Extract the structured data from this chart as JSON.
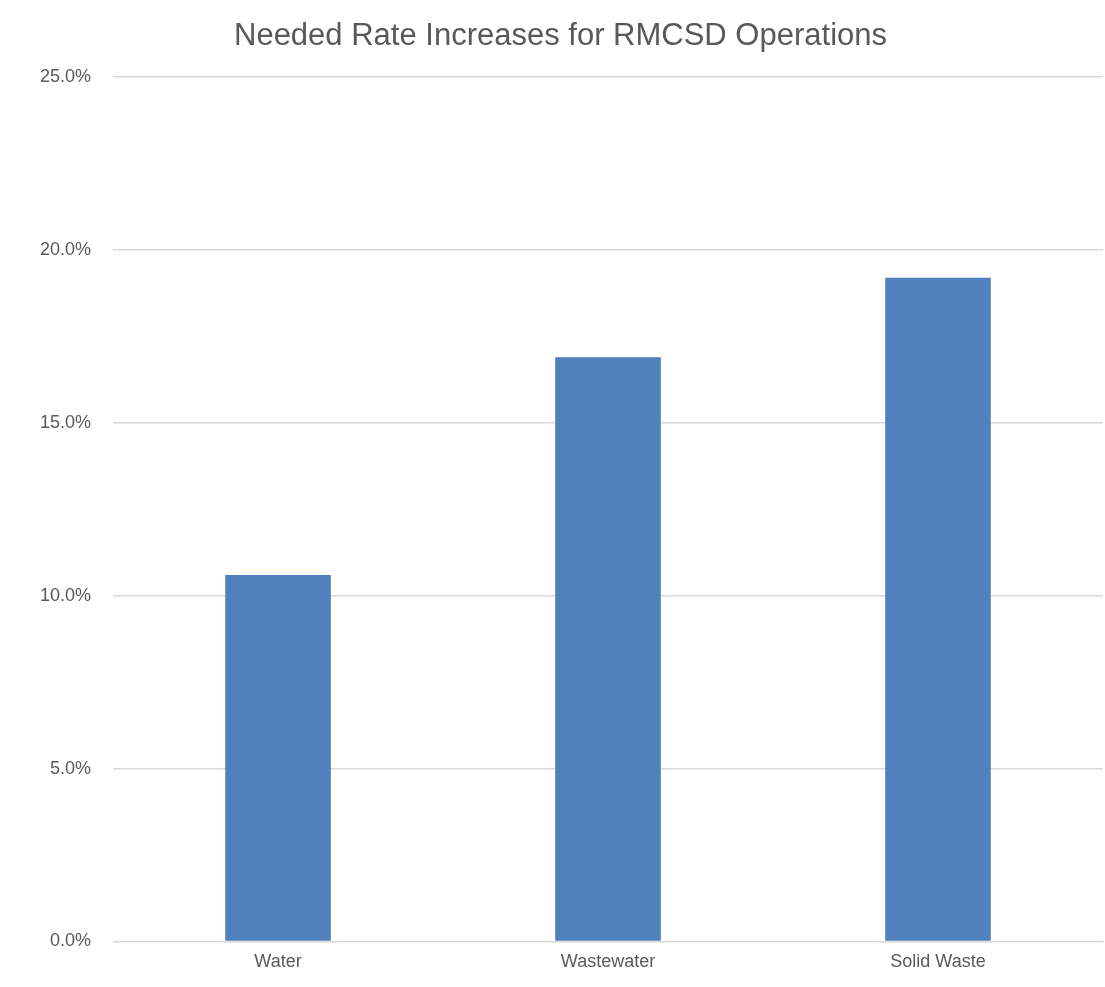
{
  "chart_data": {
    "type": "bar",
    "title": "Needed Rate Increases for RMCSD Operations",
    "categories": [
      "Water",
      "Wastewater",
      "Solid Waste"
    ],
    "values": [
      10.6,
      16.9,
      19.2
    ],
    "color": "#4f81bd",
    "ylim": [
      0,
      25
    ],
    "yticks": [
      {
        "value": 0,
        "label": "0.0%"
      },
      {
        "value": 5,
        "label": "5.0%"
      },
      {
        "value": 10,
        "label": "10.0%"
      },
      {
        "value": 15,
        "label": "15.0%"
      },
      {
        "value": 20,
        "label": "20.0%"
      },
      {
        "value": 25,
        "label": "25.0%"
      }
    ],
    "grid": "y",
    "legend": false
  }
}
